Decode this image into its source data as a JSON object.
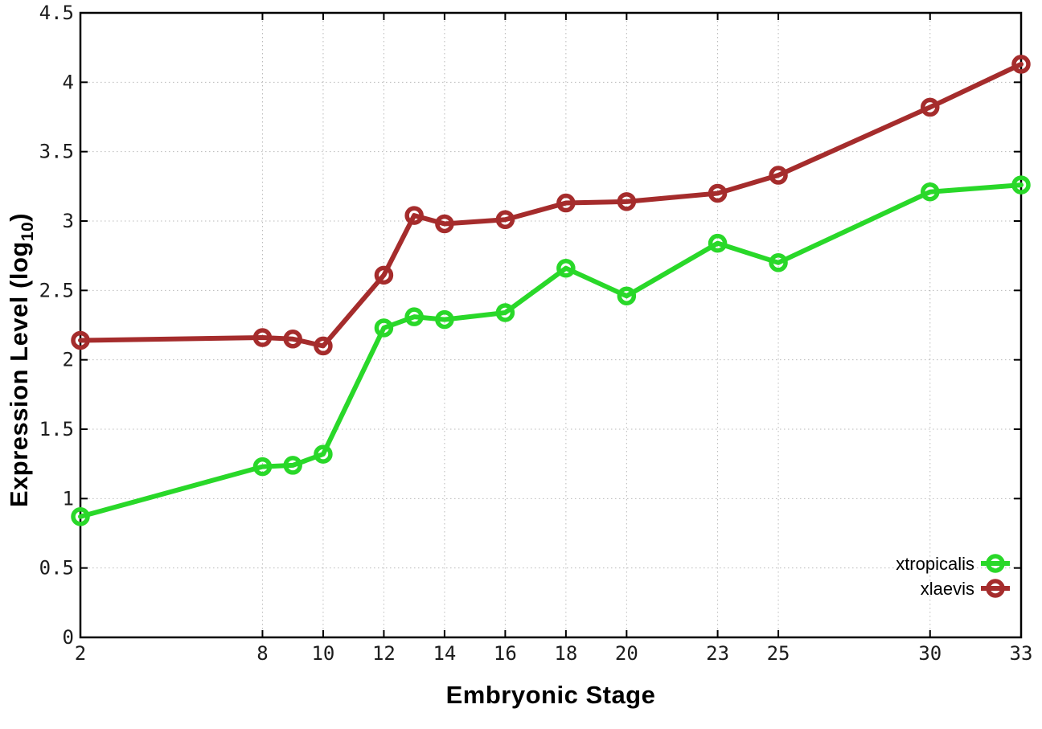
{
  "figure": {
    "xlabel": "Embryonic Stage",
    "ylabel_prefix": "Expression Level (log",
    "ylabel_sub": "10",
    "ylabel_suffix": ")"
  },
  "chart_data": {
    "type": "line",
    "title": "",
    "xlabel": "Embryonic Stage",
    "ylabel": "Expression Level (log10)",
    "x": [
      2,
      8,
      9,
      10,
      12,
      13,
      14,
      16,
      18,
      20,
      23,
      25,
      30,
      33
    ],
    "series": [
      {
        "name": "xtropicalis",
        "color": "#29d829",
        "values": [
          0.87,
          1.23,
          1.24,
          1.32,
          2.23,
          2.31,
          2.29,
          2.34,
          2.66,
          2.46,
          2.84,
          2.7,
          3.21,
          3.26
        ]
      },
      {
        "name": "xlaevis",
        "color": "#a52c2c",
        "values": [
          2.14,
          2.16,
          2.15,
          2.1,
          2.61,
          3.04,
          2.98,
          3.01,
          3.13,
          3.14,
          3.2,
          3.33,
          3.82,
          4.13
        ]
      }
    ],
    "xticks": [
      2,
      8,
      10,
      12,
      14,
      16,
      18,
      20,
      23,
      25,
      30,
      33
    ],
    "xtick_labels": [
      "2",
      "8",
      "10",
      "12",
      "14",
      "16",
      "18",
      "20",
      "23",
      "25",
      "30",
      "33"
    ],
    "yticks": [
      0,
      0.5,
      1,
      1.5,
      2,
      2.5,
      3,
      3.5,
      4,
      4.5
    ],
    "ytick_labels": [
      "0",
      "0.5",
      "1",
      "1.5",
      "2",
      "2.5",
      "3",
      "3.5",
      "4",
      "4.5"
    ],
    "xlim": [
      2,
      33
    ],
    "ylim": [
      0,
      4.5
    ],
    "grid": true,
    "legend_position": "bottom-right",
    "marker": "open-circle",
    "colors": {
      "grid": "#b9b9b9",
      "axis": "#000000",
      "tick_text": "#1c1c1c"
    }
  }
}
